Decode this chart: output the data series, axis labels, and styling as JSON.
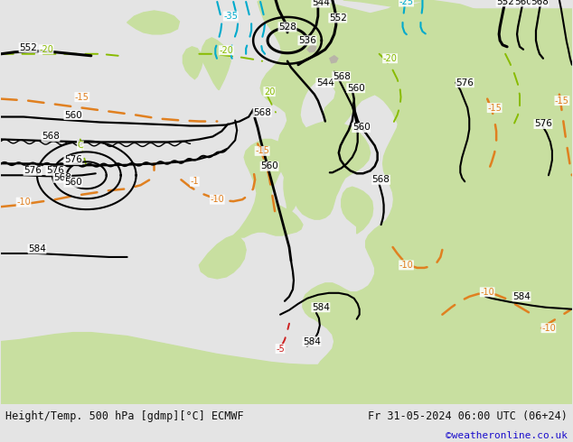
{
  "title_left": "Height/Temp. 500 hPa [gdmp][°C] ECMWF",
  "title_right": "Fr 31-05-2024 06:00 UTC (06+24)",
  "subtitle_right": "©weatheronline.co.uk",
  "land_color": "#c8dfa0",
  "ocean_color": "#d0cece",
  "coastal_color": "#b0b0b0",
  "fig_width": 6.34,
  "fig_height": 4.9,
  "dpi": 100,
  "bar_bg": "#e4e4e4",
  "text_color": "#111111",
  "link_color": "#1a0dcc",
  "contour_black": "#000000",
  "contour_orange": "#e08020",
  "contour_cyan": "#00aacc",
  "contour_lime": "#88bb00"
}
